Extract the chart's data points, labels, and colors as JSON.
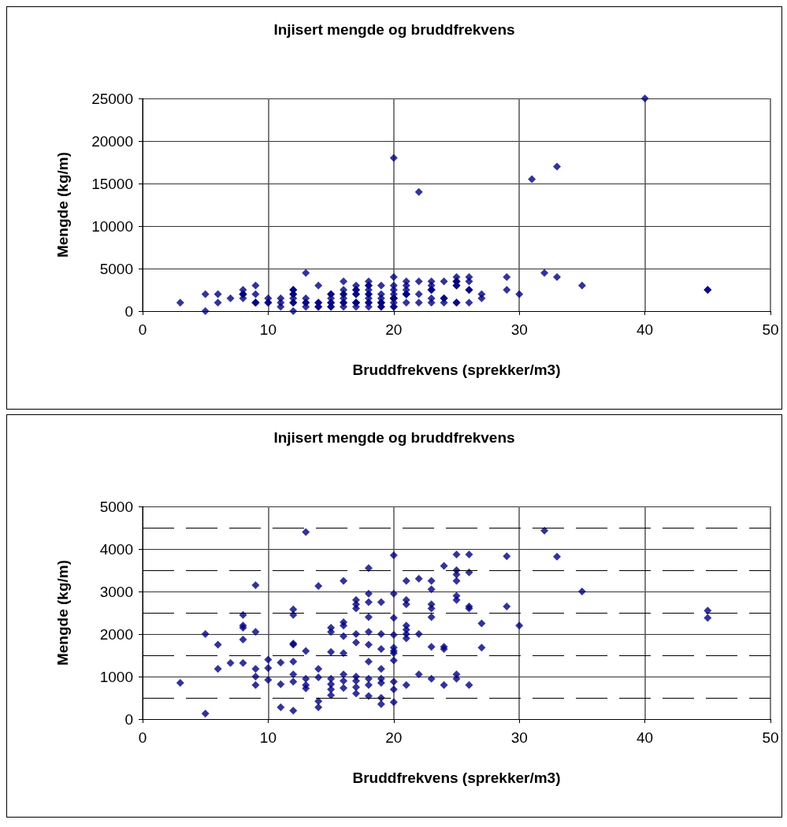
{
  "chart_data": [
    {
      "type": "scatter",
      "title": "Injisert mengde og bruddfrekvens",
      "xlabel": "Bruddfrekvens (sprekker/m3)",
      "ylabel": "Mengde (kg/m)",
      "color": "#000080",
      "marker": "diamond",
      "grid": true,
      "xlim": [
        0,
        50
      ],
      "xticks": [
        0,
        10,
        20,
        30,
        40,
        50
      ],
      "ylim": [
        0,
        25000
      ],
      "yticks": [
        0,
        5000,
        10000,
        15000,
        20000,
        25000
      ],
      "x": [
        3,
        5,
        5,
        6,
        6,
        7,
        8,
        8,
        8,
        8,
        8,
        9,
        9,
        9,
        9,
        9,
        10,
        10,
        10,
        11,
        11,
        11,
        12,
        12,
        12,
        12,
        12,
        12,
        12,
        12,
        13,
        13,
        13,
        13,
        13,
        14,
        14,
        14,
        14,
        14,
        15,
        15,
        15,
        15,
        15,
        15,
        15,
        16,
        16,
        16,
        16,
        16,
        16,
        16,
        16,
        17,
        17,
        17,
        17,
        17,
        17,
        17,
        17,
        17,
        18,
        18,
        18,
        18,
        18,
        18,
        18,
        18,
        18,
        18,
        19,
        19,
        19,
        19,
        19,
        19,
        19,
        19,
        20,
        20,
        20,
        20,
        20,
        20,
        20,
        20,
        20,
        20,
        20,
        21,
        21,
        21,
        21,
        21,
        21,
        21,
        21,
        22,
        22,
        22,
        23,
        23,
        23,
        23,
        23,
        23,
        23,
        24,
        24,
        24,
        24,
        25,
        25,
        25,
        25,
        25,
        25,
        25,
        25,
        26,
        26,
        26,
        26,
        26,
        27,
        27,
        29,
        29,
        30,
        32,
        33,
        35,
        45,
        45,
        20,
        22,
        31,
        33,
        40
      ],
      "values": [
        1000,
        2000,
        0,
        2000,
        1000,
        1500,
        2500,
        2000,
        2000,
        2000,
        1500,
        3000,
        2000,
        1000,
        1000,
        1000,
        1500,
        1000,
        1000,
        1500,
        1000,
        500,
        2500,
        2500,
        2000,
        2000,
        1500,
        1000,
        1000,
        0,
        4500,
        1500,
        1000,
        1000,
        500,
        3000,
        1000,
        1000,
        500,
        500,
        2000,
        2000,
        1500,
        1000,
        1000,
        500,
        500,
        3500,
        2500,
        2000,
        2000,
        1500,
        1000,
        1000,
        500,
        3000,
        2500,
        2500,
        2000,
        2000,
        1000,
        1000,
        1000,
        500,
        3500,
        3000,
        3000,
        2500,
        2000,
        2000,
        1500,
        1000,
        1000,
        500,
        3000,
        2000,
        1500,
        1000,
        1000,
        1000,
        500,
        500,
        4000,
        3000,
        2500,
        2000,
        1500,
        1500,
        1500,
        1500,
        1000,
        500,
        500,
        3500,
        3000,
        2500,
        2000,
        2000,
        2000,
        2000,
        1000,
        3500,
        2000,
        1000,
        3500,
        3000,
        2500,
        2500,
        2500,
        1500,
        1000,
        3500,
        1500,
        1500,
        1000,
        4000,
        3500,
        3500,
        3500,
        3000,
        3000,
        1000,
        1000,
        4000,
        3500,
        2500,
        2500,
        1000,
        2000,
        1500,
        4000,
        2500,
        2000,
        4500,
        4000,
        3000,
        2500,
        2500,
        18000,
        14000,
        15500,
        17000,
        25000
      ]
    },
    {
      "type": "scatter",
      "title": "Injisert mengde og bruddfrekvens",
      "xlabel": "Bruddfrekvens (sprekker/m3)",
      "ylabel": "Mengde (kg/m)",
      "color": "#000080",
      "marker": "diamond",
      "grid": true,
      "xlim": [
        0,
        50
      ],
      "xticks": [
        0,
        10,
        20,
        30,
        40,
        50
      ],
      "ylim": [
        0,
        5000
      ],
      "yticks": [
        0,
        {
          "value": 500,
          "label": null
        },
        1000,
        {
          "value": 1500,
          "label": null
        },
        2000,
        {
          "value": 2500,
          "label": null
        },
        3000,
        {
          "value": 3500,
          "label": null
        },
        4000,
        {
          "value": 4500,
          "label": null
        },
        5000
      ],
      "x": [
        3,
        5,
        5,
        6,
        6,
        7,
        8,
        8,
        8,
        8,
        8,
        9,
        9,
        9,
        9,
        9,
        10,
        10,
        10,
        11,
        11,
        11,
        12,
        12,
        12,
        12,
        12,
        12,
        12,
        12,
        13,
        13,
        13,
        13,
        13,
        14,
        14,
        14,
        14,
        14,
        15,
        15,
        15,
        15,
        15,
        15,
        15,
        16,
        16,
        16,
        16,
        16,
        16,
        16,
        16,
        17,
        17,
        17,
        17,
        17,
        17,
        17,
        17,
        17,
        18,
        18,
        18,
        18,
        18,
        18,
        18,
        18,
        18,
        18,
        19,
        19,
        19,
        19,
        19,
        19,
        19,
        19,
        20,
        20,
        20,
        20,
        20,
        20,
        20,
        20,
        20,
        20,
        20,
        21,
        21,
        21,
        21,
        21,
        21,
        21,
        21,
        22,
        22,
        22,
        23,
        23,
        23,
        23,
        23,
        23,
        23,
        24,
        24,
        24,
        24,
        25,
        25,
        25,
        25,
        25,
        25,
        25,
        25,
        26,
        26,
        26,
        26,
        26,
        27,
        27,
        29,
        29,
        30,
        32,
        33,
        35,
        45,
        45
      ],
      "values": [
        850,
        2000,
        130,
        1750,
        1180,
        1320,
        2450,
        2200,
        2150,
        1870,
        1320,
        3150,
        2050,
        1180,
        1000,
        800,
        1400,
        1200,
        920,
        1330,
        820,
        280,
        2580,
        2450,
        1780,
        1750,
        1350,
        1050,
        880,
        200,
        4400,
        1600,
        950,
        800,
        720,
        3130,
        1180,
        980,
        420,
        280,
        2150,
        2050,
        1580,
        950,
        820,
        700,
        560,
        3250,
        2280,
        2200,
        1950,
        1550,
        1050,
        900,
        730,
        2800,
        2700,
        2600,
        2000,
        1800,
        1000,
        900,
        750,
        600,
        3550,
        2950,
        2750,
        2400,
        2050,
        1750,
        1350,
        950,
        800,
        540,
        2750,
        2000,
        1650,
        1180,
        950,
        850,
        500,
        350,
        3850,
        2950,
        2380,
        1980,
        1680,
        1600,
        1550,
        1380,
        880,
        700,
        400,
        3250,
        2800,
        2700,
        2200,
        2100,
        2000,
        1900,
        800,
        3300,
        2000,
        1050,
        3250,
        3050,
        2700,
        2600,
        2400,
        1700,
        950,
        3600,
        1700,
        1650,
        800,
        3870,
        3500,
        3400,
        3250,
        2900,
        2800,
        1050,
        950,
        3870,
        3450,
        2650,
        2600,
        800,
        2250,
        1680,
        3830,
        2650,
        2200,
        4430,
        3820,
        3000,
        2550,
        2380
      ]
    }
  ]
}
